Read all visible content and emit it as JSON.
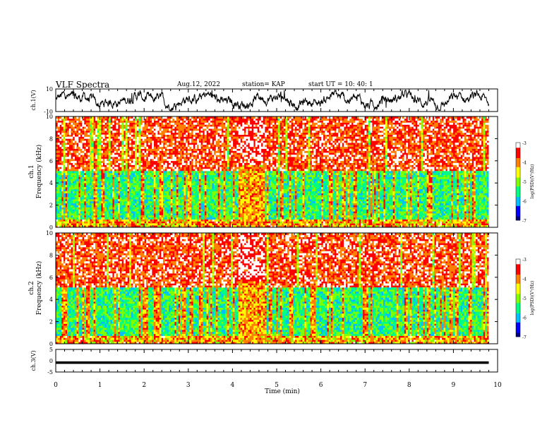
{
  "header": {
    "title": "VLF Spectra",
    "date": "Aug.12, 2022",
    "station": "station= KAP",
    "start": "start  UT  =   10: 40: 1"
  },
  "chart_data": [
    {
      "type": "line",
      "panel": "ch1-waveform",
      "ylabel": "ch.1(V)",
      "ylim": [
        -10,
        10
      ],
      "y_tick_labels": [
        "10",
        "-10"
      ],
      "xlim": [
        0,
        10
      ]
    },
    {
      "type": "heatmap",
      "panel": "ch1-spectrogram",
      "ylabel": "ch.1\nFrequency  (kHz)",
      "ylim": [
        0,
        10
      ],
      "y_tick_labels": [
        "0",
        "2",
        "4",
        "6",
        "8",
        "10"
      ],
      "xlim": [
        0,
        10
      ],
      "data_end_min": 9.8,
      "quiet_interval_min": [
        4.1,
        4.75
      ],
      "colorbar": {
        "label": "log(PSD)(V²/Hz)",
        "range": [
          -7,
          -3
        ],
        "tick_labels": [
          "-3",
          "-4",
          "-5",
          "-6",
          "-7"
        ]
      }
    },
    {
      "type": "heatmap",
      "panel": "ch2-spectrogram",
      "ylabel": "ch.2\nFrequency  (kHz)",
      "ylim": [
        0,
        10
      ],
      "y_tick_labels": [
        "0",
        "2",
        "4",
        "6",
        "8",
        "10"
      ],
      "xlim": [
        0,
        10
      ],
      "data_end_min": 9.8,
      "quiet_interval_min": [
        4.1,
        4.75
      ],
      "colorbar": {
        "label": "log(PSD)(V²/Hz)",
        "range": [
          -7,
          -3
        ],
        "tick_labels": [
          "-3",
          "-4",
          "-5",
          "-6",
          "-7"
        ]
      }
    },
    {
      "type": "line",
      "panel": "ch3-waveform",
      "ylabel": "ch.3(V)",
      "ylim": [
        -5,
        5
      ],
      "y_tick_labels": [
        "5",
        "0",
        "-5"
      ],
      "xlim": [
        0,
        10
      ],
      "xlabel": "Time  (min)",
      "x_tick_labels": [
        "0",
        "1",
        "2",
        "3",
        "4",
        "5",
        "6",
        "7",
        "8",
        "9",
        "10"
      ]
    }
  ],
  "colors": {
    "colormap": [
      "#000080",
      "#0000ff",
      "#00bfff",
      "#00ff80",
      "#80ff00",
      "#ffff00",
      "#ff8000",
      "#ff0000",
      "#ffffff"
    ]
  }
}
